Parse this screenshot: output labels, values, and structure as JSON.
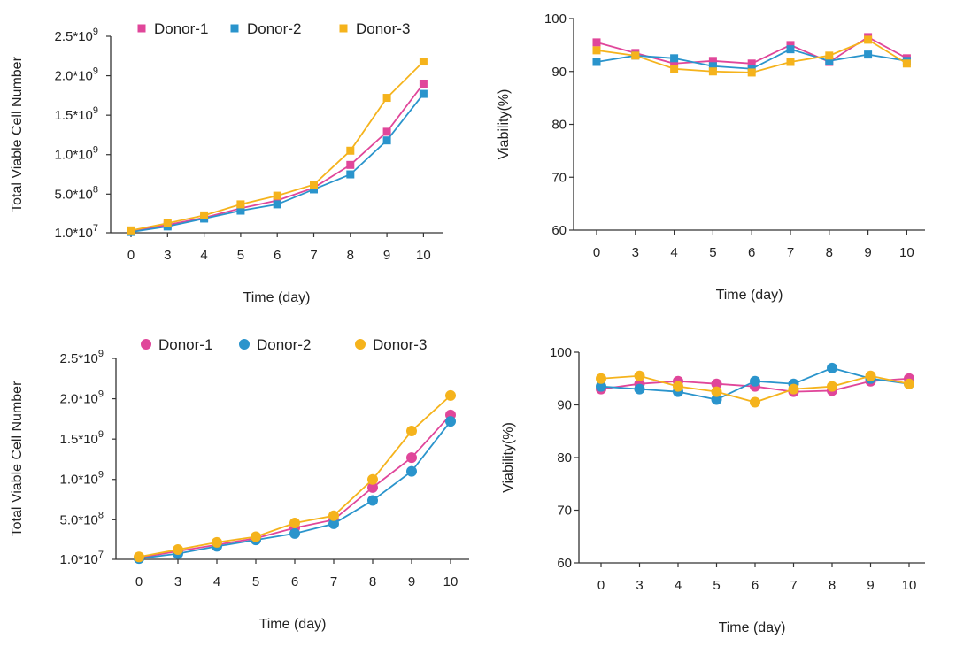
{
  "colors": {
    "Donor-1": "#e0469a",
    "Donor-2": "#2a94cc",
    "Donor-3": "#f5b31c",
    "axis": "#333333"
  },
  "chart_data": [
    {
      "id": "growth-square",
      "type": "line",
      "marker": "square",
      "xlabel": "Time (day)",
      "ylabel": "Total Viable Cell Number",
      "categories": [
        "0",
        "3",
        "4",
        "5",
        "6",
        "7",
        "8",
        "9",
        "10"
      ],
      "ylim": [
        10000000.0,
        2500000000.0
      ],
      "y_ticks": [
        10000000.0,
        500000000.0,
        1000000000.0,
        1500000000.0,
        2000000000.0,
        2500000000.0
      ],
      "y_tick_labels": [
        [
          "1.0*10",
          "7"
        ],
        [
          "5.0*10",
          "8"
        ],
        [
          "1.0*10",
          "9"
        ],
        [
          "1.5*10",
          "9"
        ],
        [
          "2.0*10",
          "9"
        ],
        [
          "2.5*10",
          "9"
        ]
      ],
      "legend": [
        "Donor-1",
        "Donor-2",
        "Donor-3"
      ],
      "series": [
        {
          "name": "Donor-1",
          "values": [
            30000000.0,
            110000000.0,
            200000000.0,
            320000000.0,
            420000000.0,
            580000000.0,
            870000000.0,
            1290000000.0,
            1900000000.0
          ]
        },
        {
          "name": "Donor-2",
          "values": [
            20000000.0,
            90000000.0,
            190000000.0,
            290000000.0,
            370000000.0,
            560000000.0,
            750000000.0,
            1180000000.0,
            1770000000.0
          ]
        },
        {
          "name": "Donor-3",
          "values": [
            40000000.0,
            130000000.0,
            230000000.0,
            370000000.0,
            480000000.0,
            620000000.0,
            1050000000.0,
            1720000000.0,
            2180000000.0
          ]
        }
      ]
    },
    {
      "id": "viability-square",
      "type": "line",
      "marker": "square",
      "xlabel": "Time (day)",
      "ylabel": "Viability(%)",
      "categories": [
        "0",
        "3",
        "4",
        "5",
        "6",
        "7",
        "8",
        "9",
        "10"
      ],
      "ylim": [
        60,
        100
      ],
      "y_ticks": [
        60,
        70,
        80,
        90,
        100
      ],
      "y_tick_labels": [
        [
          "60",
          ""
        ],
        [
          "70",
          ""
        ],
        [
          "80",
          ""
        ],
        [
          "90",
          ""
        ],
        [
          "100",
          ""
        ]
      ],
      "legend": [],
      "series": [
        {
          "name": "Donor-1",
          "values": [
            95.5,
            93.5,
            91.5,
            92.0,
            91.5,
            95.0,
            91.8,
            96.5,
            92.5
          ]
        },
        {
          "name": "Donor-2",
          "values": [
            91.8,
            93.0,
            92.5,
            91.0,
            90.5,
            94.2,
            92.0,
            93.2,
            92.0
          ]
        },
        {
          "name": "Donor-3",
          "values": [
            94.0,
            93.0,
            90.5,
            90.0,
            89.8,
            91.8,
            93.0,
            96.0,
            91.5
          ]
        }
      ]
    },
    {
      "id": "growth-circle",
      "type": "line",
      "marker": "circle",
      "xlabel": "Time (day)",
      "ylabel": "Total Viable Cell Number",
      "categories": [
        "0",
        "3",
        "4",
        "5",
        "6",
        "7",
        "8",
        "9",
        "10"
      ],
      "ylim": [
        10000000.0,
        2500000000.0
      ],
      "y_ticks": [
        10000000.0,
        500000000.0,
        1000000000.0,
        1500000000.0,
        2000000000.0,
        2500000000.0
      ],
      "y_tick_labels": [
        [
          "1.0*10",
          "7"
        ],
        [
          "5.0*10",
          "8"
        ],
        [
          "1.0*10",
          "9"
        ],
        [
          "1.5*10",
          "9"
        ],
        [
          "2.0*10",
          "9"
        ],
        [
          "2.5*10",
          "9"
        ]
      ],
      "legend": [
        "Donor-1",
        "Donor-2",
        "Donor-3"
      ],
      "series": [
        {
          "name": "Donor-1",
          "values": [
            30000000.0,
            110000000.0,
            190000000.0,
            270000000.0,
            400000000.0,
            500000000.0,
            900000000.0,
            1270000000.0,
            1800000000.0
          ]
        },
        {
          "name": "Donor-2",
          "values": [
            20000000.0,
            80000000.0,
            170000000.0,
            250000000.0,
            330000000.0,
            450000000.0,
            740000000.0,
            1100000000.0,
            1720000000.0
          ]
        },
        {
          "name": "Donor-3",
          "values": [
            40000000.0,
            130000000.0,
            220000000.0,
            290000000.0,
            460000000.0,
            550000000.0,
            1000000000.0,
            1600000000.0,
            2040000000.0
          ]
        }
      ]
    },
    {
      "id": "viability-circle",
      "type": "line",
      "marker": "circle",
      "xlabel": "Time (day)",
      "ylabel": "Viability(%)",
      "categories": [
        "0",
        "3",
        "4",
        "5",
        "6",
        "7",
        "8",
        "9",
        "10"
      ],
      "ylim": [
        60,
        100
      ],
      "y_ticks": [
        60,
        70,
        80,
        90,
        100
      ],
      "y_tick_labels": [
        [
          "60",
          ""
        ],
        [
          "70",
          ""
        ],
        [
          "80",
          ""
        ],
        [
          "90",
          ""
        ],
        [
          "100",
          ""
        ]
      ],
      "legend": [],
      "series": [
        {
          "name": "Donor-1",
          "values": [
            93.0,
            94.0,
            94.5,
            94.0,
            93.5,
            92.5,
            92.7,
            94.5,
            95.0
          ]
        },
        {
          "name": "Donor-2",
          "values": [
            93.5,
            93.0,
            92.5,
            91.0,
            94.5,
            94.0,
            97.0,
            95.0,
            94.0
          ]
        },
        {
          "name": "Donor-3",
          "values": [
            95.0,
            95.5,
            93.5,
            92.5,
            90.5,
            93.0,
            93.5,
            95.5,
            94.0
          ]
        }
      ]
    }
  ]
}
